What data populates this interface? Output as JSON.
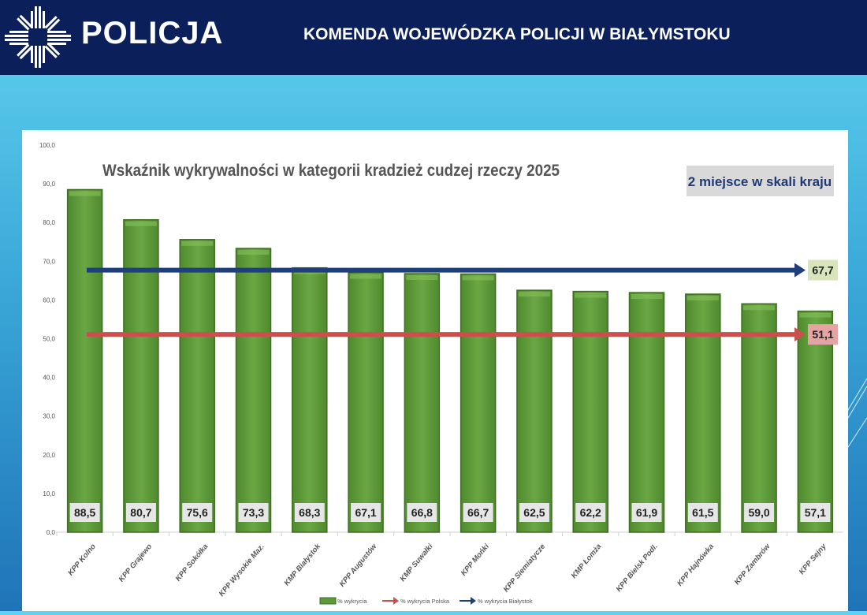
{
  "header": {
    "logo_text": "POLICJA",
    "title": "KOMENDA WOJEWÓDZKA POLICJI W BIAŁYMSTOKU"
  },
  "chart_data": {
    "type": "bar",
    "title": "Wskaźnik wykrywalności w kategorii kradzież cudzej rzeczy 2025",
    "annotation": "2 miejsce w skali kraju",
    "categories": [
      "KPP Kolno",
      "KPP Grajewo",
      "KPP Sokółka",
      "KPP Wysokie Maz.",
      "KMP Białystok",
      "KPP Augustów",
      "KMP Suwałki",
      "KPP Mońki",
      "KPP Siemiatycze",
      "KMP Łomża",
      "KPP Bielsk Podl.",
      "KPP Hajnówka",
      "KPP Zambrów",
      "KPP Sejny"
    ],
    "values": [
      88.5,
      80.7,
      75.6,
      73.3,
      68.3,
      67.1,
      66.8,
      66.7,
      62.5,
      62.2,
      61.9,
      61.5,
      59.0,
      57.1
    ],
    "value_labels": [
      "88,5",
      "80,7",
      "75,6",
      "73,3",
      "68,3",
      "67,1",
      "66,8",
      "66,7",
      "62,5",
      "62,2",
      "61,9",
      "61,5",
      "59,0",
      "57,1"
    ],
    "yticks": [
      "0,0",
      "10,0",
      "20,0",
      "30,0",
      "40,0",
      "50,0",
      "60,0",
      "70,0",
      "80,0",
      "90,0",
      "100,0"
    ],
    "ylim": [
      0,
      100
    ],
    "reference_lines": [
      {
        "name": "% wykrycia Białystok",
        "value": 67.7,
        "label": "67,7",
        "color": "#1f3f7a",
        "label_bg": "#d7e4bc"
      },
      {
        "name": "% wykrycia Polska",
        "value": 51.1,
        "label": "51,1",
        "color": "#c9504d",
        "label_bg": "#e6a3a3"
      }
    ],
    "legend": [
      "% wykrycia",
      "% wykrycia Polska",
      "% wykrycia Białystok"
    ],
    "legend_position": "bottom",
    "bar_color": "#5e9a3a"
  }
}
